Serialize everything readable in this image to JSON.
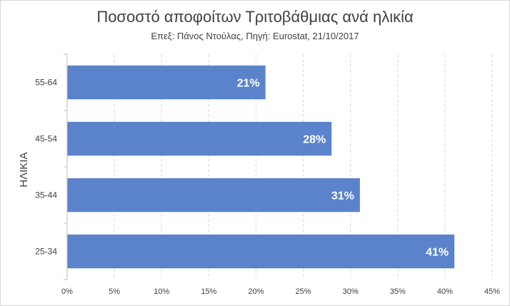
{
  "chart_data": {
    "type": "bar",
    "orientation": "horizontal",
    "title": "Ποσοστό αποφοίτων Τριτοβάθμιας ανά ηλικία",
    "subtitle": "Επεξ: Πάνος Ντούλας, Πηγή: Eurostat, 21/10/2017",
    "ylabel": "ΗΛΙΚΙΑ",
    "categories": [
      "55-64",
      "45-54",
      "35-44",
      "25-34"
    ],
    "values": [
      21,
      28,
      31,
      41
    ],
    "data_labels": [
      "21%",
      "28%",
      "31%",
      "41%"
    ],
    "xlim": [
      0,
      45
    ],
    "x_ticks": [
      0,
      5,
      10,
      15,
      20,
      25,
      30,
      35,
      40,
      45
    ],
    "x_tick_labels": [
      "0%",
      "5%",
      "10%",
      "15%",
      "20%",
      "25%",
      "30%",
      "35%",
      "40%",
      "45%"
    ],
    "grid": "vertical dashed",
    "legend": "none",
    "bar_color": "#5b83cc",
    "grid_color": "#d9d9d9"
  }
}
